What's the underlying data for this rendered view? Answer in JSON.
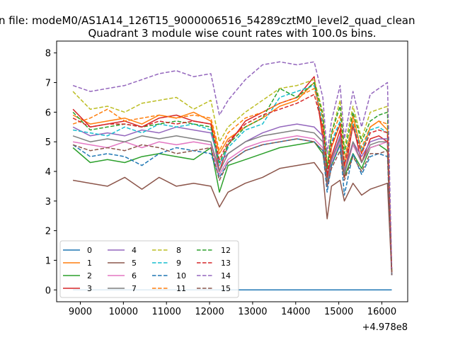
{
  "chart_data": {
    "type": "line",
    "suptitle": "n file: modeM0/AS1A14_126T15_9000006516_54289cztM0_level2_quad_clean",
    "title": "Quadrant 3 module wise count rates with 100.0s bins.",
    "xlabel": "",
    "ylabel": "",
    "x_offset_label": "+4.978e8",
    "xlim": [
      8450,
      16600
    ],
    "ylim": [
      -0.4,
      8.4
    ],
    "x_ticks": [
      9000,
      10000,
      11000,
      12000,
      13000,
      14000,
      15000,
      16000
    ],
    "x_tick_labels": [
      "9000",
      "10000",
      "11000",
      "12000",
      "13000",
      "14000",
      "15000",
      "16000"
    ],
    "y_ticks": [
      0,
      1,
      2,
      3,
      4,
      5,
      6,
      7,
      8
    ],
    "y_tick_labels": [
      "0",
      "1",
      "2",
      "3",
      "4",
      "5",
      "6",
      "7",
      "8"
    ],
    "grid": false,
    "legend": {
      "placement": "lower-left",
      "columns": 4
    },
    "x": [
      8830,
      9230,
      9630,
      10030,
      10430,
      10830,
      11230,
      11630,
      12030,
      12230,
      12430,
      12830,
      13230,
      13630,
      14030,
      14430,
      14630,
      14730,
      14830,
      15030,
      15130,
      15330,
      15530,
      15730,
      15930,
      16130,
      16230
    ],
    "series": [
      {
        "name": "0",
        "color": "#1f77b4",
        "dash": "solid",
        "values": [
          0,
          0,
          0,
          0,
          0,
          0,
          0,
          0,
          0,
          0,
          0,
          0,
          0,
          0,
          0,
          0,
          0,
          0,
          0,
          0,
          0,
          0,
          0,
          0,
          0,
          0,
          0
        ]
      },
      {
        "name": "1",
        "color": "#ff7f0e",
        "dash": "solid",
        "values": [
          5.9,
          5.6,
          5.7,
          5.8,
          5.6,
          5.9,
          5.8,
          6.0,
          5.7,
          4.6,
          5.1,
          5.5,
          5.8,
          6.2,
          6.4,
          7.0,
          5.4,
          3.5,
          4.8,
          5.6,
          4.1,
          5.9,
          4.6,
          5.5,
          5.7,
          5.4,
          0.6
        ]
      },
      {
        "name": "2",
        "color": "#2ca02c",
        "dash": "solid",
        "values": [
          4.8,
          4.3,
          4.4,
          4.3,
          4.5,
          4.6,
          4.5,
          4.4,
          4.8,
          3.3,
          4.2,
          4.4,
          4.6,
          4.8,
          4.9,
          5.0,
          4.6,
          3.7,
          4.2,
          4.9,
          3.8,
          4.6,
          4.1,
          4.8,
          4.9,
          4.7,
          0.5
        ]
      },
      {
        "name": "3",
        "color": "#d62728",
        "dash": "solid",
        "values": [
          6.1,
          5.5,
          5.6,
          5.7,
          5.5,
          5.8,
          5.9,
          5.7,
          5.6,
          4.0,
          4.9,
          5.7,
          6.0,
          6.3,
          6.5,
          7.2,
          5.1,
          3.8,
          4.5,
          5.4,
          3.8,
          5.6,
          4.3,
          5.1,
          5.2,
          5.0,
          0.5
        ]
      },
      {
        "name": "4",
        "color": "#9467bd",
        "dash": "solid",
        "values": [
          5.5,
          5.2,
          5.3,
          5.2,
          5.4,
          5.3,
          5.5,
          5.4,
          5.3,
          4.3,
          4.6,
          5.0,
          5.3,
          5.5,
          5.6,
          5.5,
          5.2,
          3.6,
          4.4,
          5.2,
          4.0,
          5.0,
          4.5,
          5.0,
          5.1,
          5.1,
          0.5
        ]
      },
      {
        "name": "5",
        "color": "#8c564b",
        "dash": "solid",
        "values": [
          3.7,
          3.6,
          3.5,
          3.8,
          3.4,
          3.8,
          3.5,
          3.6,
          3.5,
          2.8,
          3.3,
          3.6,
          3.8,
          4.1,
          4.2,
          4.3,
          3.9,
          2.4,
          3.5,
          3.7,
          3.0,
          3.6,
          3.2,
          3.4,
          3.5,
          3.6,
          0.5
        ]
      },
      {
        "name": "6",
        "color": "#e377c2",
        "dash": "solid",
        "values": [
          5.0,
          4.9,
          4.8,
          5.0,
          4.8,
          5.0,
          4.9,
          5.0,
          4.9,
          3.9,
          4.4,
          4.8,
          5.0,
          5.1,
          5.2,
          5.1,
          4.8,
          3.5,
          4.3,
          5.0,
          3.9,
          4.9,
          4.3,
          4.8,
          4.9,
          5.0,
          0.5
        ]
      },
      {
        "name": "7",
        "color": "#7f7f7f",
        "dash": "solid",
        "values": [
          5.2,
          5.0,
          5.1,
          5.0,
          5.2,
          5.1,
          5.2,
          5.1,
          5.0,
          4.0,
          4.6,
          5.0,
          5.2,
          5.3,
          5.4,
          5.3,
          5.0,
          3.6,
          4.4,
          5.1,
          3.9,
          5.0,
          4.3,
          4.9,
          5.0,
          5.0,
          0.5
        ]
      },
      {
        "name": "8",
        "color": "#bcbd22",
        "dash": "dashed",
        "values": [
          6.7,
          6.1,
          6.2,
          6.0,
          6.3,
          6.4,
          6.5,
          6.1,
          6.4,
          5.0,
          5.5,
          6.0,
          6.4,
          6.8,
          6.9,
          7.1,
          6.0,
          4.2,
          5.3,
          6.4,
          4.8,
          6.2,
          5.1,
          6.0,
          6.1,
          6.2,
          0.6
        ]
      },
      {
        "name": "9",
        "color": "#17becf",
        "dash": "dashed",
        "values": [
          5.4,
          5.3,
          5.2,
          5.5,
          5.3,
          5.6,
          5.5,
          5.6,
          5.4,
          4.2,
          4.8,
          5.4,
          5.6,
          6.5,
          6.7,
          6.9,
          5.6,
          4.0,
          5.0,
          5.7,
          4.3,
          5.6,
          4.7,
          5.4,
          5.5,
          5.3,
          0.6
        ]
      },
      {
        "name": "10",
        "color": "#1f77b4",
        "dash": "dashed",
        "values": [
          4.9,
          4.5,
          4.6,
          4.5,
          4.2,
          4.6,
          4.8,
          4.7,
          4.6,
          3.8,
          4.3,
          4.7,
          4.9,
          5.0,
          5.1,
          5.0,
          4.7,
          3.3,
          4.2,
          4.9,
          3.2,
          4.6,
          3.9,
          4.5,
          4.6,
          4.5,
          0.5
        ]
      },
      {
        "name": "11",
        "color": "#ff7f0e",
        "dash": "dashed",
        "values": [
          5.6,
          5.8,
          6.1,
          5.7,
          5.8,
          5.9,
          5.8,
          5.9,
          5.8,
          4.7,
          5.3,
          5.8,
          6.0,
          6.3,
          6.5,
          6.8,
          5.8,
          4.1,
          5.2,
          5.9,
          4.4,
          5.7,
          4.8,
          5.5,
          5.7,
          5.6,
          0.6
        ]
      },
      {
        "name": "12",
        "color": "#2ca02c",
        "dash": "dashed",
        "values": [
          6.0,
          5.4,
          5.5,
          5.6,
          5.5,
          5.6,
          5.7,
          5.6,
          5.5,
          4.3,
          4.9,
          5.5,
          5.8,
          6.8,
          6.5,
          7.0,
          5.9,
          4.1,
          5.3,
          6.2,
          4.6,
          6.0,
          5.0,
          5.7,
          5.9,
          6.0,
          0.6
        ]
      },
      {
        "name": "13",
        "color": "#d62728",
        "dash": "dashed",
        "values": [
          5.8,
          5.5,
          5.6,
          5.6,
          5.5,
          5.7,
          5.6,
          5.7,
          5.6,
          4.4,
          5.0,
          5.6,
          5.9,
          6.1,
          6.3,
          6.6,
          5.5,
          3.9,
          4.9,
          5.6,
          4.2,
          5.5,
          4.6,
          5.3,
          5.4,
          5.3,
          0.6
        ]
      },
      {
        "name": "14",
        "color": "#9467bd",
        "dash": "dashed",
        "values": [
          6.9,
          6.7,
          6.8,
          6.9,
          7.1,
          7.3,
          7.4,
          7.2,
          7.3,
          5.9,
          6.4,
          7.1,
          7.6,
          7.7,
          7.6,
          7.7,
          6.5,
          4.6,
          5.7,
          6.9,
          5.1,
          6.7,
          5.5,
          6.6,
          6.8,
          7.0,
          0.7
        ]
      },
      {
        "name": "15",
        "color": "#8c564b",
        "dash": "dashed",
        "values": [
          4.9,
          4.7,
          4.8,
          4.7,
          4.9,
          4.8,
          4.6,
          4.7,
          4.8,
          3.7,
          4.3,
          4.7,
          4.9,
          5.0,
          5.1,
          5.0,
          4.7,
          3.5,
          4.1,
          4.7,
          3.7,
          4.5,
          4.0,
          4.6,
          4.6,
          4.7,
          0.5
        ]
      }
    ]
  }
}
